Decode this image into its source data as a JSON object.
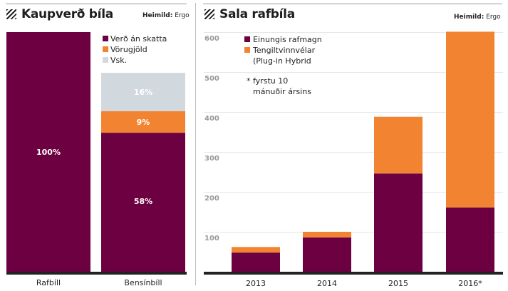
{
  "colors": {
    "purple": "#6c0040",
    "orange": "#f28431",
    "gray": "#d1d8de",
    "axis": "#222222",
    "grid": "#e6e6e6",
    "tick": "#9a9a9a"
  },
  "chart_data": [
    {
      "type": "bar",
      "stacked": true,
      "title": "Kaupverð bíla",
      "source_label": "Heimild:",
      "source_value": "Ergo",
      "categories": [
        "Rafbíll",
        "Bensínbíll"
      ],
      "series": [
        {
          "name": "Verð án skatta",
          "color": "purple",
          "values": [
            100,
            58
          ],
          "labels": [
            "100%",
            "58%"
          ]
        },
        {
          "name": "Vörugjöld",
          "color": "orange",
          "values": [
            0,
            9
          ],
          "labels": [
            "",
            "9%"
          ]
        },
        {
          "name": "Vsk.",
          "color": "gray",
          "values": [
            0,
            16
          ],
          "labels": [
            "",
            "16%"
          ]
        }
      ],
      "ylim": [
        0,
        100
      ],
      "grid": false,
      "legend": "top-right"
    },
    {
      "type": "bar",
      "stacked": true,
      "title": "Sala rafbíla",
      "source_label": "Heimild:",
      "source_value": "Ergo",
      "categories": [
        "2013",
        "2014",
        "2015",
        "2016*"
      ],
      "series": [
        {
          "name": "Einungis rafmagn",
          "color": "purple",
          "values": [
            48,
            86,
            246,
            161
          ]
        },
        {
          "name": "Tengiltvinnvélar (Plug-in Hybrid",
          "color": "orange",
          "values": [
            14,
            14,
            142,
            440
          ]
        }
      ],
      "legend_lines": [
        "Einungis rafmagn",
        "Tengiltvinnvélar",
        "(Plug-in Hybrid"
      ],
      "annotation": [
        "* fyrstu 10",
        "mánuðir ársins"
      ],
      "yticks": [
        100,
        200,
        300,
        400,
        500,
        600
      ],
      "ylim": [
        0,
        600
      ],
      "grid": true,
      "legend": "top-left"
    }
  ]
}
